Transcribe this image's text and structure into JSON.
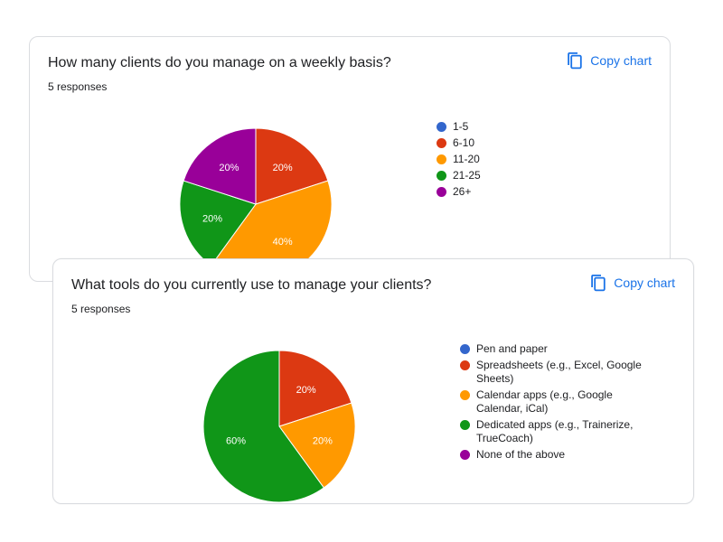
{
  "cards": [
    {
      "title": "How many clients do you manage on a weekly basis?",
      "subtitle": "5 responses",
      "copy_label": "Copy chart"
    },
    {
      "title": "What tools do you currently use to manage your clients?",
      "subtitle": "5 responses",
      "copy_label": "Copy chart"
    }
  ],
  "icons": {
    "copy": "copy-icon"
  },
  "accent_color": "#1a73e8",
  "chart_data": [
    {
      "type": "pie",
      "title": "How many clients do you manage on a weekly basis?",
      "responses": "5 responses",
      "legend_position": "right",
      "slices": [
        {
          "label": "1-5",
          "value": 0,
          "percent_label": "",
          "color": "#3366cc"
        },
        {
          "label": "6-10",
          "value": 20,
          "percent_label": "20%",
          "color": "#dc3912"
        },
        {
          "label": "11-20",
          "value": 40,
          "percent_label": "40%",
          "color": "#ff9900"
        },
        {
          "label": "21-25",
          "value": 20,
          "percent_label": "20%",
          "color": "#109618"
        },
        {
          "label": "26+",
          "value": 20,
          "percent_label": "20%",
          "color": "#990099"
        }
      ]
    },
    {
      "type": "pie",
      "title": "What tools do you currently use to manage your clients?",
      "responses": "5 responses",
      "legend_position": "right",
      "slices": [
        {
          "label": "Pen and paper",
          "value": 0,
          "percent_label": "",
          "color": "#3366cc"
        },
        {
          "label": "Spreadsheets (e.g., Excel, Google Sheets)",
          "value": 20,
          "percent_label": "20%",
          "color": "#dc3912"
        },
        {
          "label": "Calendar apps (e.g., Google Calendar, iCal)",
          "value": 20,
          "percent_label": "20%",
          "color": "#ff9900"
        },
        {
          "label": "Dedicated apps (e.g., Trainerize, TrueCoach)",
          "value": 60,
          "percent_label": "60%",
          "color": "#109618"
        },
        {
          "label": "None of the above",
          "value": 0,
          "percent_label": "",
          "color": "#990099"
        }
      ]
    }
  ]
}
